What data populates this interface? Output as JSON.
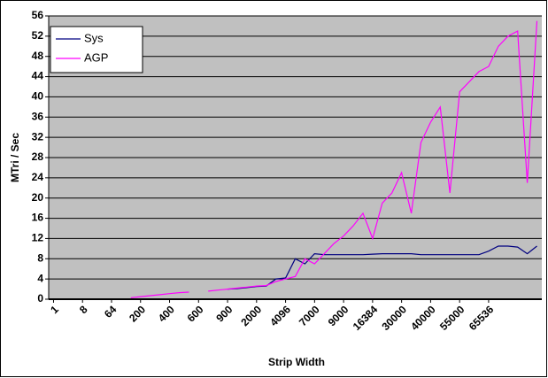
{
  "chart_data": {
    "type": "line",
    "y_label": "MTri / Sec",
    "x_label": "Strip Width",
    "categories": [
      "1",
      null,
      null,
      "8",
      null,
      null,
      "64",
      null,
      null,
      "200",
      null,
      null,
      "400",
      null,
      null,
      "600",
      null,
      null,
      "900",
      null,
      null,
      "2000",
      null,
      null,
      "4096",
      null,
      null,
      "7000",
      null,
      null,
      "9000",
      null,
      null,
      "16384",
      null,
      null,
      "30000",
      null,
      null,
      "40000",
      null,
      null,
      "55000",
      null,
      null,
      "65536",
      null,
      null,
      null,
      null,
      null
    ],
    "series": [
      {
        "name": "Sys",
        "color": "#000080",
        "values": [
          null,
          null,
          null,
          null,
          null,
          null,
          null,
          null,
          null,
          null,
          null,
          null,
          null,
          null,
          null,
          null,
          null,
          null,
          2.0,
          2.1,
          2.3,
          2.5,
          2.6,
          4.0,
          4.2,
          8,
          7,
          9,
          8.8,
          8.8,
          8.8,
          8.8,
          8.8,
          8.9,
          9,
          9,
          9,
          9,
          8.8,
          8.8,
          8.8,
          8.8,
          8.8,
          8.8,
          8.8,
          9.5,
          10.5,
          10.5,
          10.3,
          9,
          10.5
        ]
      },
      {
        "name": "AGP",
        "color": "#ff00ff",
        "values": [
          null,
          null,
          null,
          null,
          null,
          null,
          null,
          null,
          0.3,
          0.5,
          0.7,
          0.9,
          1.1,
          1.3,
          1.4,
          null,
          1.6,
          1.8,
          2.0,
          2.2,
          2.4,
          2.6,
          2.7,
          3.5,
          4,
          4.5,
          8,
          7,
          9,
          11,
          12.5,
          14.5,
          17,
          12,
          19,
          21,
          25,
          17,
          31,
          35,
          38,
          21,
          41,
          43,
          45,
          46,
          50,
          52,
          53,
          23,
          55
        ]
      }
    ],
    "ylim": [
      0,
      56
    ],
    "yticks": [
      0,
      4,
      8,
      12,
      16,
      20,
      24,
      28,
      32,
      36,
      40,
      44,
      48,
      52,
      56
    ],
    "grid": true,
    "legend": "top-left",
    "plot_background": "#c0c0c0"
  }
}
